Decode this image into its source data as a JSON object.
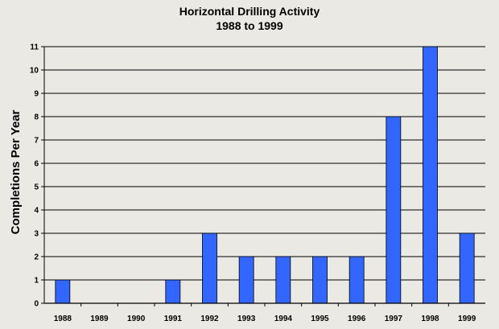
{
  "chart_data": {
    "type": "bar",
    "title": "Horizontal Drilling Activity",
    "subtitle": "1988 to 1999",
    "xlabel": "",
    "ylabel": "Completions Per Year",
    "categories": [
      "1988",
      "1989",
      "1990",
      "1991",
      "1992",
      "1993",
      "1994",
      "1995",
      "1996",
      "1997",
      "1998",
      "1999"
    ],
    "values": [
      1,
      0,
      0,
      1,
      3,
      2,
      2,
      2,
      2,
      8,
      11,
      3
    ],
    "ylim": [
      0,
      11
    ],
    "yticks": [
      0,
      1,
      2,
      3,
      4,
      5,
      6,
      7,
      8,
      9,
      10,
      11
    ],
    "grid": true,
    "legend": "none",
    "colors": {
      "bar": "#3366ff",
      "bar_edge": "#000000",
      "grid": "#000000",
      "background": "#ebe9e3"
    }
  }
}
